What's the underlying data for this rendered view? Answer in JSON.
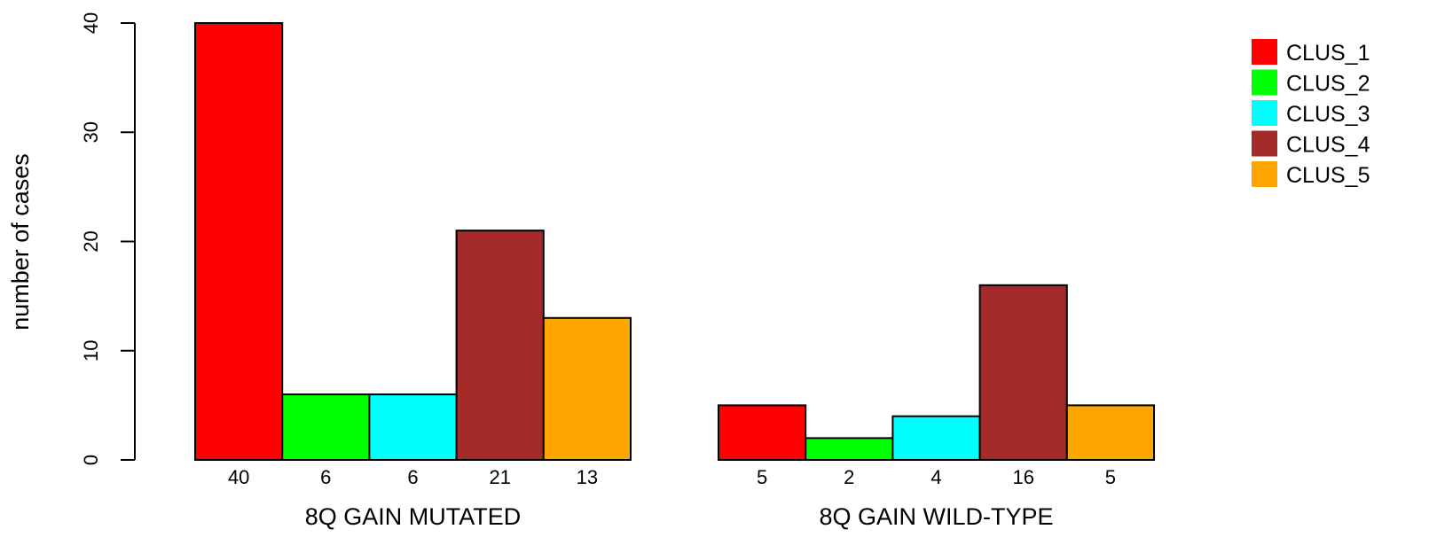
{
  "chart_data": {
    "type": "bar",
    "ylabel": "number of cases",
    "ylim": [
      0,
      40
    ],
    "yticks": [
      "0",
      "10",
      "20",
      "30",
      "40"
    ],
    "groups": [
      {
        "label": "8Q GAIN MUTATED",
        "values": [
          40,
          6,
          6,
          21,
          13
        ]
      },
      {
        "label": "8Q GAIN WILD-TYPE",
        "values": [
          5,
          2,
          4,
          16,
          5
        ]
      }
    ],
    "series": [
      {
        "name": "CLUS_1",
        "color": "#ff0000"
      },
      {
        "name": "CLUS_2",
        "color": "#00ff00"
      },
      {
        "name": "CLUS_3",
        "color": "#00ffff"
      },
      {
        "name": "CLUS_4",
        "color": "#a52a2a"
      },
      {
        "name": "CLUS_5",
        "color": "#ffa500"
      }
    ],
    "legend_position": "top-right",
    "grid": false
  }
}
